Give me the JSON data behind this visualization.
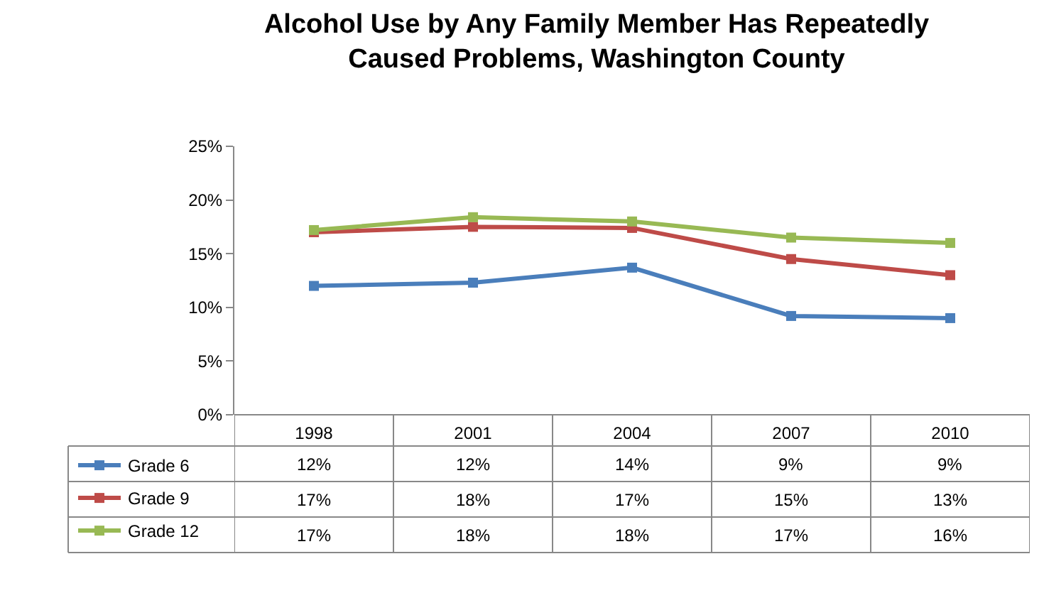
{
  "chart_data": {
    "type": "line",
    "title": "Alcohol Use by Any Family Member Has Repeatedly Caused Problems, Washington County",
    "categories": [
      "1998",
      "2001",
      "2004",
      "2007",
      "2010"
    ],
    "series": [
      {
        "name": "Grade 6",
        "color": "#4a7ebb",
        "values": [
          12.0,
          12.3,
          13.7,
          9.2,
          9.0
        ],
        "value_labels": [
          "12%",
          "12%",
          "14%",
          "9%",
          "9%"
        ]
      },
      {
        "name": "Grade 9",
        "color": "#be4b48",
        "values": [
          17.0,
          17.5,
          17.4,
          14.5,
          13.0
        ],
        "value_labels": [
          "17%",
          "18%",
          "17%",
          "15%",
          "13%"
        ]
      },
      {
        "name": "Grade 12",
        "color": "#98b954",
        "values": [
          17.2,
          18.4,
          18.0,
          16.5,
          16.0
        ],
        "value_labels": [
          "17%",
          "18%",
          "18%",
          "17%",
          "16%"
        ]
      }
    ],
    "ylim": [
      0,
      25
    ],
    "yticks": [
      {
        "value": 0,
        "label": "0%"
      },
      {
        "value": 5,
        "label": "5%"
      },
      {
        "value": 10,
        "label": "10%"
      },
      {
        "value": 15,
        "label": "15%"
      },
      {
        "value": 20,
        "label": "20%"
      },
      {
        "value": 25,
        "label": "25%"
      }
    ],
    "marker": "square",
    "line_style": "solid",
    "legend": "bottom left"
  }
}
